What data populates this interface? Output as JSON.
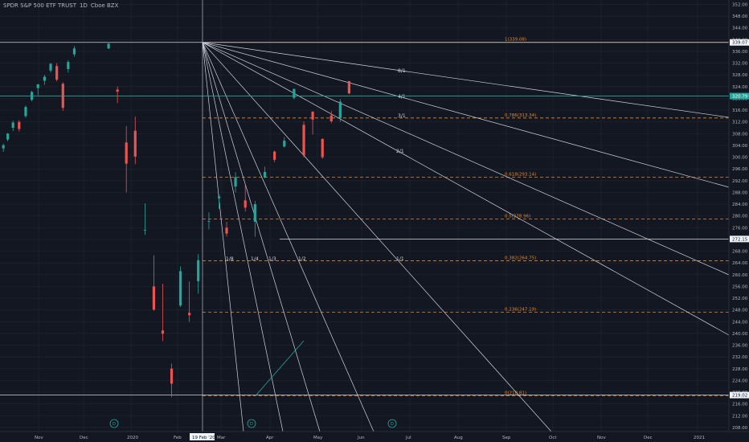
{
  "header": {
    "symbol": "SPDR S&P 500 ETF TRUST",
    "interval": "1D",
    "exchange": "Cboe BZX"
  },
  "colors": {
    "background": "#131722",
    "grid": "#1f2433",
    "up_candle": "#26a69a",
    "down_candle": "#ef5350",
    "fib_line": "#e0882e",
    "fan_line": "#d1d4dc",
    "axis_text": "#b2b5be"
  },
  "chart_data": {
    "type": "candlestick",
    "ylim": [
      206.6,
      353.5
    ],
    "y_ticks": [
      208,
      212,
      216,
      220,
      224,
      228,
      232,
      236,
      240,
      244,
      248,
      252,
      256,
      260,
      264,
      268,
      272,
      276,
      280,
      284,
      288,
      292,
      296,
      300,
      304,
      308,
      312,
      316,
      320,
      324,
      328,
      332,
      336,
      340,
      344,
      348,
      352
    ],
    "x_labels": [
      "Nov",
      "Dec",
      "2020",
      "Feb",
      "Mar",
      "Apr",
      "May",
      "Jun",
      "Jul",
      "Aug",
      "Sep",
      "Oct",
      "Nov",
      "Dec",
      "2021"
    ],
    "x_cursor_label": "19 Feb '20",
    "price_labels": [
      {
        "text": "339.07",
        "value": 339.07
      },
      {
        "text": "320.79",
        "value": 320.79
      },
      {
        "text": "272.15",
        "value": 272.15
      },
      {
        "text": "219.02",
        "value": 219.02
      }
    ],
    "fib_levels": [
      {
        "text": "1(339.08)",
        "value": 339.08
      },
      {
        "text": "0.786(313.34)",
        "value": 313.34
      },
      {
        "text": "0.618(293.14)",
        "value": 293.14
      },
      {
        "text": "0.5(278.96)",
        "value": 278.96
      },
      {
        "text": "0.382(264.75)",
        "value": 264.75
      },
      {
        "text": "0.236(247.19)",
        "value": 247.19
      },
      {
        "text": "0(218.81)",
        "value": 218.81
      }
    ],
    "fan_labels": [
      "8/1",
      "4/1",
      "3/1",
      "2/1",
      "1/8",
      "1/4",
      "1/3",
      "1/2",
      "1/1"
    ],
    "event_markers": [
      "D",
      "D",
      "D"
    ],
    "series": [
      {
        "label": "Oct 30",
        "o": 303.0,
        "h": 304.6,
        "l": 301.8,
        "c": 304.1
      },
      {
        "label": "Nov 8",
        "o": 306.0,
        "h": 308.3,
        "l": 305.4,
        "c": 308.0
      },
      {
        "label": "Nov 20",
        "o": 310.0,
        "h": 312.4,
        "l": 308.9,
        "c": 311.8
      },
      {
        "label": "Dec 3",
        "o": 312.0,
        "h": 312.6,
        "l": 308.7,
        "c": 309.6
      },
      {
        "label": "Dec 13",
        "o": 314.0,
        "h": 317.6,
        "l": 313.4,
        "c": 317.1
      },
      {
        "label": "Dec 23",
        "o": 319.5,
        "h": 322.6,
        "l": 319.0,
        "c": 322.2
      },
      {
        "label": "Jan 2",
        "o": 323.5,
        "h": 324.9,
        "l": 321.1,
        "c": 324.8
      },
      {
        "label": "Jan 10",
        "o": 326.0,
        "h": 328.0,
        "l": 324.6,
        "c": 327.4
      },
      {
        "label": "Jan 17",
        "o": 329.5,
        "h": 332.0,
        "l": 328.8,
        "c": 331.8
      },
      {
        "label": "Jan 24",
        "o": 331.0,
        "h": 332.0,
        "l": 325.8,
        "c": 326.4
      },
      {
        "label": "Jan 31",
        "o": 325.0,
        "h": 325.5,
        "l": 315.8,
        "c": 316.8
      },
      {
        "label": "Feb 7",
        "o": 330.0,
        "h": 333.0,
        "l": 328.8,
        "c": 332.4
      },
      {
        "label": "Feb 14",
        "o": 335.0,
        "h": 337.8,
        "l": 334.2,
        "c": 337.0
      },
      {
        "label": "Feb 19",
        "o": 337.0,
        "h": 339.1,
        "l": 336.8,
        "c": 338.6
      },
      {
        "label": "Feb 24",
        "o": 323.0,
        "h": 324.1,
        "l": 318.4,
        "c": 322.3
      },
      {
        "label": "Feb 27",
        "o": 305.0,
        "h": 310.6,
        "l": 288.0,
        "c": 297.8
      },
      {
        "label": "Mar 3",
        "o": 309.0,
        "h": 313.8,
        "l": 297.6,
        "c": 300.2
      },
      {
        "label": "Mar 9",
        "o": 275.0,
        "h": 284.3,
        "l": 273.5,
        "c": 275.2
      },
      {
        "label": "Mar 12",
        "o": 256.0,
        "h": 266.6,
        "l": 247.7,
        "c": 248.1
      },
      {
        "label": "Mar 16",
        "o": 241.0,
        "h": 256.9,
        "l": 237.4,
        "c": 239.9
      },
      {
        "label": "Mar 23",
        "o": 228.0,
        "h": 229.7,
        "l": 218.3,
        "c": 222.9
      },
      {
        "label": "Mar 26",
        "o": 249.5,
        "h": 262.8,
        "l": 249.0,
        "c": 261.2
      },
      {
        "label": "Apr 1",
        "o": 247.0,
        "h": 257.7,
        "l": 243.9,
        "c": 246.2
      },
      {
        "label": "Apr 6",
        "o": 257.8,
        "h": 267.0,
        "l": 253.5,
        "c": 264.9
      },
      {
        "label": "Apr 9",
        "o": 278.0,
        "h": 281.2,
        "l": 275.4,
        "c": 278.2
      },
      {
        "label": "Apr 17",
        "o": 286.0,
        "h": 287.3,
        "l": 282.4,
        "c": 286.6
      },
      {
        "label": "Apr 21",
        "o": 276.0,
        "h": 278.0,
        "l": 273.0,
        "c": 274.0
      },
      {
        "label": "Apr 29",
        "o": 290.0,
        "h": 294.9,
        "l": 288.0,
        "c": 293.2
      },
      {
        "label": "May 1",
        "o": 285.3,
        "h": 290.7,
        "l": 281.5,
        "c": 282.8
      },
      {
        "label": "May 14",
        "o": 278.0,
        "h": 285.1,
        "l": 272.9,
        "c": 284.0
      },
      {
        "label": "May 18",
        "o": 293.1,
        "h": 296.8,
        "l": 292.8,
        "c": 295.0
      },
      {
        "label": "May 26",
        "o": 301.9,
        "h": 302.2,
        "l": 298.3,
        "c": 299.1
      },
      {
        "label": "Jun 1",
        "o": 303.6,
        "h": 306.8,
        "l": 303.3,
        "c": 305.6
      },
      {
        "label": "Jun 8",
        "o": 320.2,
        "h": 323.4,
        "l": 319.6,
        "c": 323.2
      },
      {
        "label": "Jun 11",
        "o": 311.0,
        "h": 312.2,
        "l": 300.1,
        "c": 300.6
      },
      {
        "label": "Jun 16",
        "o": 315.5,
        "h": 315.6,
        "l": 307.7,
        "c": 312.8
      },
      {
        "label": "Jun 26",
        "o": 306.2,
        "h": 306.4,
        "l": 299.4,
        "c": 300.0
      },
      {
        "label": "Jul 2",
        "o": 314.2,
        "h": 315.7,
        "l": 311.6,
        "c": 312.2
      },
      {
        "label": "Jul 14",
        "o": 313.3,
        "h": 319.8,
        "l": 312.0,
        "c": 318.9
      },
      {
        "label": "Jul 21",
        "o": 325.9,
        "h": 325.9,
        "l": 321.4,
        "c": 321.7
      }
    ]
  }
}
